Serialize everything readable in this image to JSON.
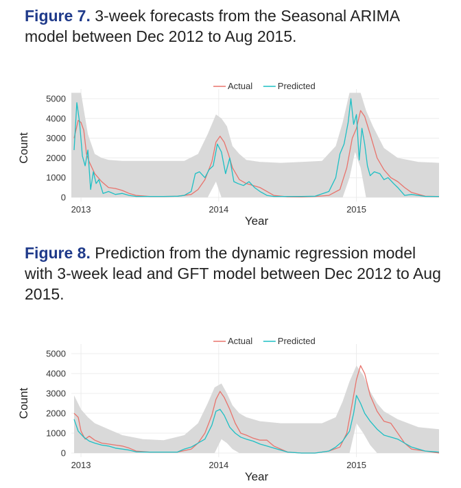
{
  "figures": [
    {
      "label": "Figure 7.",
      "caption": " 3-week forecasts from the Seasonal ARIMA model between Dec 2012 to Aug 2015."
    },
    {
      "label": "Figure 8.",
      "caption": " Prediction from the dynamic regression model with 3-week lead and GFT model between Dec 2012 to Aug 2015."
    }
  ],
  "chart_data": [
    {
      "type": "line",
      "title": "",
      "xlabel": "Year",
      "ylabel": "Count",
      "xlim": [
        2012.93,
        2015.6
      ],
      "ylim": [
        0,
        5000
      ],
      "x_ticks": [
        2013,
        2014,
        2015
      ],
      "x_tick_labels": [
        "2013",
        "2014",
        "2015"
      ],
      "y_ticks": [
        0,
        1000,
        2000,
        3000,
        4000,
        5000
      ],
      "y_tick_labels": [
        "0",
        "1000",
        "2000",
        "3000",
        "4000",
        "5000"
      ],
      "legend": {
        "position": "top",
        "entries": [
          "Actual",
          "Predicted"
        ]
      },
      "colors": {
        "Actual": "#e8736c",
        "Predicted": "#1cbfc4",
        "band": "#d9d9d9",
        "grid": "#ececec"
      },
      "grid": true,
      "band": {
        "x": [
          2012.93,
          2012.97,
          2013.0,
          2013.05,
          2013.1,
          2013.15,
          2013.2,
          2013.3,
          2013.45,
          2013.6,
          2013.75,
          2013.85,
          2013.92,
          2013.98,
          2014.02,
          2014.06,
          2014.1,
          2014.15,
          2014.2,
          2014.3,
          2014.45,
          2014.6,
          2014.75,
          2014.85,
          2014.9,
          2014.95,
          2014.99,
          2015.03,
          2015.07,
          2015.12,
          2015.2,
          2015.3,
          2015.45,
          2015.6
        ],
        "upper": [
          5300,
          5300,
          5300,
          3200,
          2200,
          2000,
          1900,
          1850,
          1850,
          1850,
          1850,
          2200,
          3200,
          4200,
          4000,
          3600,
          2600,
          2200,
          1900,
          1800,
          1750,
          1800,
          1850,
          2600,
          3800,
          5300,
          5300,
          5300,
          4400,
          3600,
          2500,
          2000,
          1800,
          1750
        ],
        "lower": [
          0,
          0,
          0,
          0,
          0,
          0,
          0,
          0,
          0,
          0,
          0,
          0,
          0,
          800,
          0,
          0,
          0,
          0,
          0,
          0,
          0,
          0,
          0,
          0,
          0,
          1000,
          2300,
          1500,
          0,
          0,
          0,
          0,
          0,
          0
        ]
      },
      "series": [
        {
          "name": "Actual",
          "x": [
            2012.95,
            2012.98,
            2013.0,
            2013.02,
            2013.04,
            2013.06,
            2013.1,
            2013.15,
            2013.2,
            2013.25,
            2013.3,
            2013.35,
            2013.4,
            2013.5,
            2013.6,
            2013.7,
            2013.8,
            2013.85,
            2013.9,
            2013.95,
            2013.98,
            2014.01,
            2014.04,
            2014.07,
            2014.1,
            2014.15,
            2014.2,
            2014.3,
            2014.4,
            2014.5,
            2014.6,
            2014.7,
            2014.8,
            2014.88,
            2014.93,
            2014.97,
            2015.0,
            2015.03,
            2015.06,
            2015.1,
            2015.15,
            2015.2,
            2015.25,
            2015.3,
            2015.35,
            2015.4,
            2015.5,
            2015.6
          ],
          "values": [
            3000,
            3900,
            3800,
            3400,
            2200,
            1800,
            1200,
            800,
            500,
            450,
            350,
            200,
            100,
            50,
            50,
            60,
            150,
            400,
            900,
            1800,
            2800,
            3100,
            2800,
            2200,
            1500,
            900,
            700,
            500,
            100,
            30,
            20,
            50,
            100,
            400,
            1500,
            3000,
            3500,
            4400,
            4100,
            3200,
            2000,
            1400,
            1000,
            800,
            500,
            250,
            60,
            40
          ]
        },
        {
          "name": "Predicted",
          "x": [
            2012.95,
            2012.97,
            2012.99,
            2013.01,
            2013.03,
            2013.05,
            2013.07,
            2013.09,
            2013.11,
            2013.13,
            2013.16,
            2013.2,
            2013.25,
            2013.3,
            2013.35,
            2013.4,
            2013.5,
            2013.6,
            2013.7,
            2013.75,
            2013.8,
            2013.83,
            2013.86,
            2013.9,
            2013.93,
            2013.96,
            2013.99,
            2014.02,
            2014.05,
            2014.08,
            2014.11,
            2014.14,
            2014.18,
            2014.22,
            2014.26,
            2014.3,
            2014.35,
            2014.4,
            2014.5,
            2014.6,
            2014.7,
            2014.8,
            2014.85,
            2014.88,
            2014.91,
            2014.94,
            2014.96,
            2014.98,
            2015.0,
            2015.02,
            2015.04,
            2015.06,
            2015.08,
            2015.1,
            2015.13,
            2015.17,
            2015.2,
            2015.23,
            2015.27,
            2015.3,
            2015.35,
            2015.4,
            2015.5,
            2015.6
          ],
          "values": [
            2400,
            4800,
            3800,
            2100,
            1600,
            2400,
            400,
            1300,
            700,
            900,
            200,
            300,
            150,
            200,
            100,
            50,
            50,
            50,
            60,
            100,
            300,
            1200,
            1300,
            1000,
            1400,
            1600,
            2700,
            2300,
            1200,
            2000,
            800,
            700,
            600,
            800,
            500,
            300,
            100,
            50,
            50,
            50,
            60,
            300,
            1000,
            2200,
            2700,
            3800,
            5000,
            3700,
            4200,
            1900,
            3500,
            2700,
            1600,
            1100,
            1300,
            1200,
            900,
            1000,
            700,
            500,
            100,
            150,
            50,
            50
          ]
        }
      ]
    },
    {
      "type": "line",
      "title": "",
      "xlabel": "Year",
      "ylabel": "Count",
      "xlim": [
        2012.93,
        2015.6
      ],
      "ylim": [
        0,
        5000
      ],
      "x_ticks": [
        2013,
        2014,
        2015
      ],
      "x_tick_labels": [
        "2013",
        "2014",
        "2015"
      ],
      "y_ticks": [
        0,
        1000,
        2000,
        3000,
        4000,
        5000
      ],
      "y_tick_labels": [
        "0",
        "1000",
        "2000",
        "3000",
        "4000",
        "5000"
      ],
      "legend": {
        "position": "top",
        "entries": [
          "Actual",
          "Predicted"
        ]
      },
      "colors": {
        "Actual": "#e8736c",
        "Predicted": "#1cbfc4",
        "band": "#d9d9d9",
        "grid": "#ececec"
      },
      "grid": true,
      "band": {
        "x": [
          2012.95,
          2013.0,
          2013.05,
          2013.1,
          2013.2,
          2013.3,
          2013.45,
          2013.6,
          2013.75,
          2013.85,
          2013.92,
          2013.97,
          2014.02,
          2014.06,
          2014.1,
          2014.15,
          2014.2,
          2014.3,
          2014.45,
          2014.6,
          2014.75,
          2014.85,
          2014.9,
          2014.95,
          2015.0,
          2015.05,
          2015.1,
          2015.15,
          2015.2,
          2015.3,
          2015.45,
          2015.6
        ],
        "upper": [
          2900,
          2200,
          1800,
          1500,
          1200,
          900,
          700,
          650,
          900,
          1500,
          2500,
          3300,
          3500,
          3000,
          2400,
          2000,
          1800,
          1600,
          1500,
          1500,
          1500,
          1800,
          2600,
          3600,
          4400,
          3900,
          3100,
          2500,
          2100,
          1700,
          1300,
          1200
        ],
        "lower": [
          0,
          0,
          0,
          0,
          0,
          0,
          0,
          0,
          0,
          0,
          0,
          0,
          700,
          500,
          200,
          0,
          0,
          0,
          0,
          0,
          0,
          0,
          0,
          0,
          1500,
          1000,
          400,
          0,
          0,
          0,
          0,
          0
        ]
      },
      "series": [
        {
          "name": "Actual",
          "x": [
            2012.95,
            2012.98,
            2013.0,
            2013.03,
            2013.06,
            2013.1,
            2013.15,
            2013.2,
            2013.25,
            2013.3,
            2013.35,
            2013.4,
            2013.5,
            2013.6,
            2013.7,
            2013.8,
            2013.85,
            2013.9,
            2013.95,
            2013.98,
            2014.01,
            2014.04,
            2014.08,
            2014.12,
            2014.16,
            2014.2,
            2014.25,
            2014.3,
            2014.35,
            2014.4,
            2014.5,
            2014.6,
            2014.7,
            2014.8,
            2014.88,
            2014.93,
            2014.97,
            2015.0,
            2015.03,
            2015.06,
            2015.1,
            2015.15,
            2015.2,
            2015.25,
            2015.3,
            2015.35,
            2015.4,
            2015.5,
            2015.6
          ],
          "values": [
            2000,
            1800,
            1100,
            700,
            850,
            650,
            500,
            450,
            400,
            350,
            250,
            100,
            50,
            50,
            50,
            200,
            500,
            1000,
            1900,
            2700,
            3100,
            2800,
            2200,
            1500,
            1000,
            900,
            750,
            650,
            650,
            350,
            50,
            0,
            0,
            100,
            300,
            1000,
            2500,
            3700,
            4400,
            4000,
            2900,
            2100,
            1600,
            1500,
            1000,
            500,
            200,
            100,
            0
          ]
        },
        {
          "name": "Predicted",
          "x": [
            2012.95,
            2012.98,
            2013.02,
            2013.06,
            2013.1,
            2013.15,
            2013.2,
            2013.25,
            2013.3,
            2013.35,
            2013.4,
            2013.5,
            2013.6,
            2013.7,
            2013.75,
            2013.8,
            2013.85,
            2013.9,
            2013.95,
            2013.98,
            2014.01,
            2014.04,
            2014.08,
            2014.12,
            2014.16,
            2014.2,
            2014.25,
            2014.3,
            2014.35,
            2014.4,
            2014.5,
            2014.6,
            2014.7,
            2014.8,
            2014.85,
            2014.9,
            2014.95,
            2014.98,
            2015.0,
            2015.03,
            2015.06,
            2015.1,
            2015.15,
            2015.2,
            2015.25,
            2015.3,
            2015.35,
            2015.4,
            2015.5,
            2015.6
          ],
          "values": [
            1700,
            1100,
            800,
            600,
            500,
            400,
            350,
            250,
            200,
            150,
            60,
            50,
            50,
            50,
            200,
            300,
            500,
            700,
            1400,
            2100,
            2200,
            1900,
            1300,
            1000,
            800,
            700,
            600,
            450,
            350,
            250,
            50,
            0,
            0,
            100,
            300,
            600,
            1100,
            2000,
            2900,
            2500,
            2000,
            1600,
            1200,
            900,
            800,
            700,
            500,
            300,
            100,
            50
          ]
        }
      ]
    }
  ]
}
